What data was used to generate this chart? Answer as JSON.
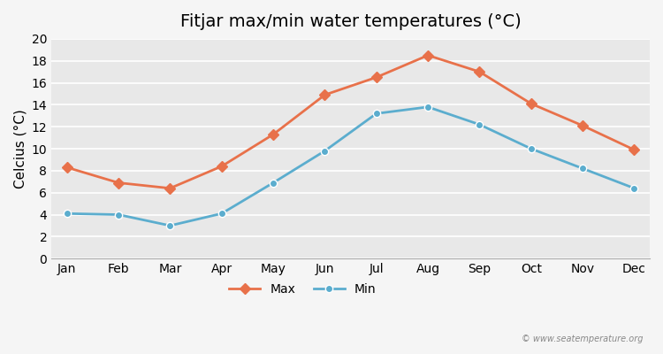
{
  "title": "Fitjar max/min water temperatures (°C)",
  "xlabel": "",
  "ylabel": "Celcius (°C)",
  "months": [
    "Jan",
    "Feb",
    "Mar",
    "Apr",
    "May",
    "Jun",
    "Jul",
    "Aug",
    "Sep",
    "Oct",
    "Nov",
    "Dec"
  ],
  "max_values": [
    8.3,
    6.9,
    6.4,
    8.4,
    11.3,
    14.9,
    16.5,
    18.5,
    17.0,
    14.1,
    12.1,
    9.9
  ],
  "min_values": [
    4.1,
    4.0,
    3.0,
    4.1,
    6.9,
    9.8,
    13.2,
    13.8,
    12.2,
    10.0,
    8.2,
    6.4
  ],
  "max_color": "#e8714a",
  "min_color": "#5badce",
  "ylim": [
    0,
    20
  ],
  "yticks": [
    0,
    2,
    4,
    6,
    8,
    10,
    12,
    14,
    16,
    18,
    20
  ],
  "background_color": "#e8e8e8",
  "grid_color": "#ffffff",
  "legend_labels": [
    "Max",
    "Min"
  ],
  "watermark": "© www.seatemperature.org",
  "title_fontsize": 14,
  "axis_label_fontsize": 11,
  "tick_fontsize": 10
}
